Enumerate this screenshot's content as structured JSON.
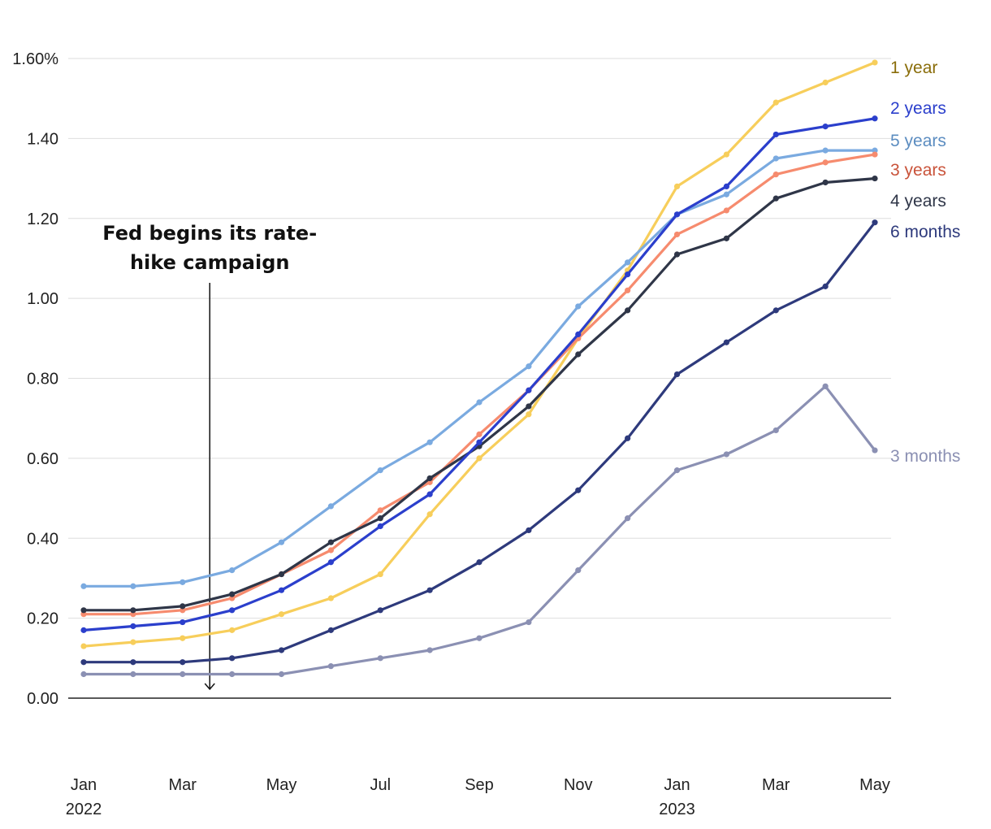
{
  "chart_data": {
    "type": "line",
    "title": "",
    "xlabel": "",
    "ylabel": "",
    "ylim": [
      0,
      1.6
    ],
    "grid": true,
    "y_ticks": [
      {
        "value": 0.0,
        "label": "0.00"
      },
      {
        "value": 0.2,
        "label": "0.20"
      },
      {
        "value": 0.4,
        "label": "0.40"
      },
      {
        "value": 0.6,
        "label": "0.60"
      },
      {
        "value": 0.8,
        "label": "0.80"
      },
      {
        "value": 1.0,
        "label": "1.00"
      },
      {
        "value": 1.2,
        "label": "1.20"
      },
      {
        "value": 1.4,
        "label": "1.40"
      },
      {
        "value": 1.6,
        "label": "1.60%"
      }
    ],
    "x": [
      "Jan 2022",
      "Feb 2022",
      "Mar 2022",
      "Apr 2022",
      "May 2022",
      "Jun 2022",
      "Jul 2022",
      "Aug 2022",
      "Sep 2022",
      "Oct 2022",
      "Nov 2022",
      "Dec 2022",
      "Jan 2023",
      "Feb 2023",
      "Mar 2023",
      "Apr 2023",
      "May 2023"
    ],
    "x_ticks": [
      {
        "index": 0,
        "label": "Jan",
        "sublabel": "2022"
      },
      {
        "index": 2,
        "label": "Mar",
        "sublabel": ""
      },
      {
        "index": 4,
        "label": "May",
        "sublabel": ""
      },
      {
        "index": 6,
        "label": "Jul",
        "sublabel": ""
      },
      {
        "index": 8,
        "label": "Sep",
        "sublabel": ""
      },
      {
        "index": 10,
        "label": "Nov",
        "sublabel": ""
      },
      {
        "index": 12,
        "label": "Jan",
        "sublabel": "2023"
      },
      {
        "index": 14,
        "label": "Mar",
        "sublabel": ""
      },
      {
        "index": 16,
        "label": "May",
        "sublabel": ""
      }
    ],
    "series": [
      {
        "name": "3 months",
        "color": "#8b90b3",
        "label_color": "#8b90b3",
        "values": [
          0.06,
          0.06,
          0.06,
          0.06,
          0.06,
          0.08,
          0.1,
          0.12,
          0.15,
          0.19,
          0.32,
          0.45,
          0.57,
          0.61,
          0.67,
          0.78,
          0.62
        ]
      },
      {
        "name": "6 months",
        "color": "#2e3a7c",
        "label_color": "#2e3a7c",
        "values": [
          0.09,
          0.09,
          0.09,
          0.1,
          0.12,
          0.17,
          0.22,
          0.27,
          0.34,
          0.42,
          0.52,
          0.65,
          0.81,
          0.89,
          0.97,
          1.03,
          1.19
        ]
      },
      {
        "name": "1 year",
        "color": "#f7ce5b",
        "label_color": "#8a6d0a",
        "values": [
          0.13,
          0.14,
          0.15,
          0.17,
          0.21,
          0.25,
          0.31,
          0.46,
          0.6,
          0.71,
          0.9,
          1.07,
          1.28,
          1.36,
          1.49,
          1.54,
          1.59
        ]
      },
      {
        "name": "5 years",
        "color": "#7aaae0",
        "label_color": "#5b8cc0",
        "values": [
          0.28,
          0.28,
          0.29,
          0.32,
          0.39,
          0.48,
          0.57,
          0.64,
          0.74,
          0.83,
          0.98,
          1.09,
          1.21,
          1.26,
          1.35,
          1.37,
          1.37
        ]
      },
      {
        "name": "3 years",
        "color": "#f68b6e",
        "label_color": "#c9533a",
        "values": [
          0.21,
          0.21,
          0.22,
          0.25,
          0.31,
          0.37,
          0.47,
          0.54,
          0.66,
          0.77,
          0.9,
          1.02,
          1.16,
          1.22,
          1.31,
          1.34,
          1.36
        ]
      },
      {
        "name": "4 years",
        "color": "#2f3648",
        "label_color": "#2f3648",
        "values": [
          0.22,
          0.22,
          0.23,
          0.26,
          0.31,
          0.39,
          0.45,
          0.55,
          0.63,
          0.73,
          0.86,
          0.97,
          1.11,
          1.15,
          1.25,
          1.29,
          1.3
        ]
      },
      {
        "name": "2 years",
        "color": "#2b3fcc",
        "label_color": "#2b3fcc",
        "values": [
          0.17,
          0.18,
          0.19,
          0.22,
          0.27,
          0.34,
          0.43,
          0.51,
          0.64,
          0.77,
          0.91,
          1.06,
          1.21,
          1.28,
          1.41,
          1.43,
          1.45
        ]
      }
    ],
    "annotations": [
      {
        "text_lines": [
          "Fed begins its rate-",
          "hike campaign"
        ],
        "arrow_at_index": 2.55
      }
    ]
  }
}
